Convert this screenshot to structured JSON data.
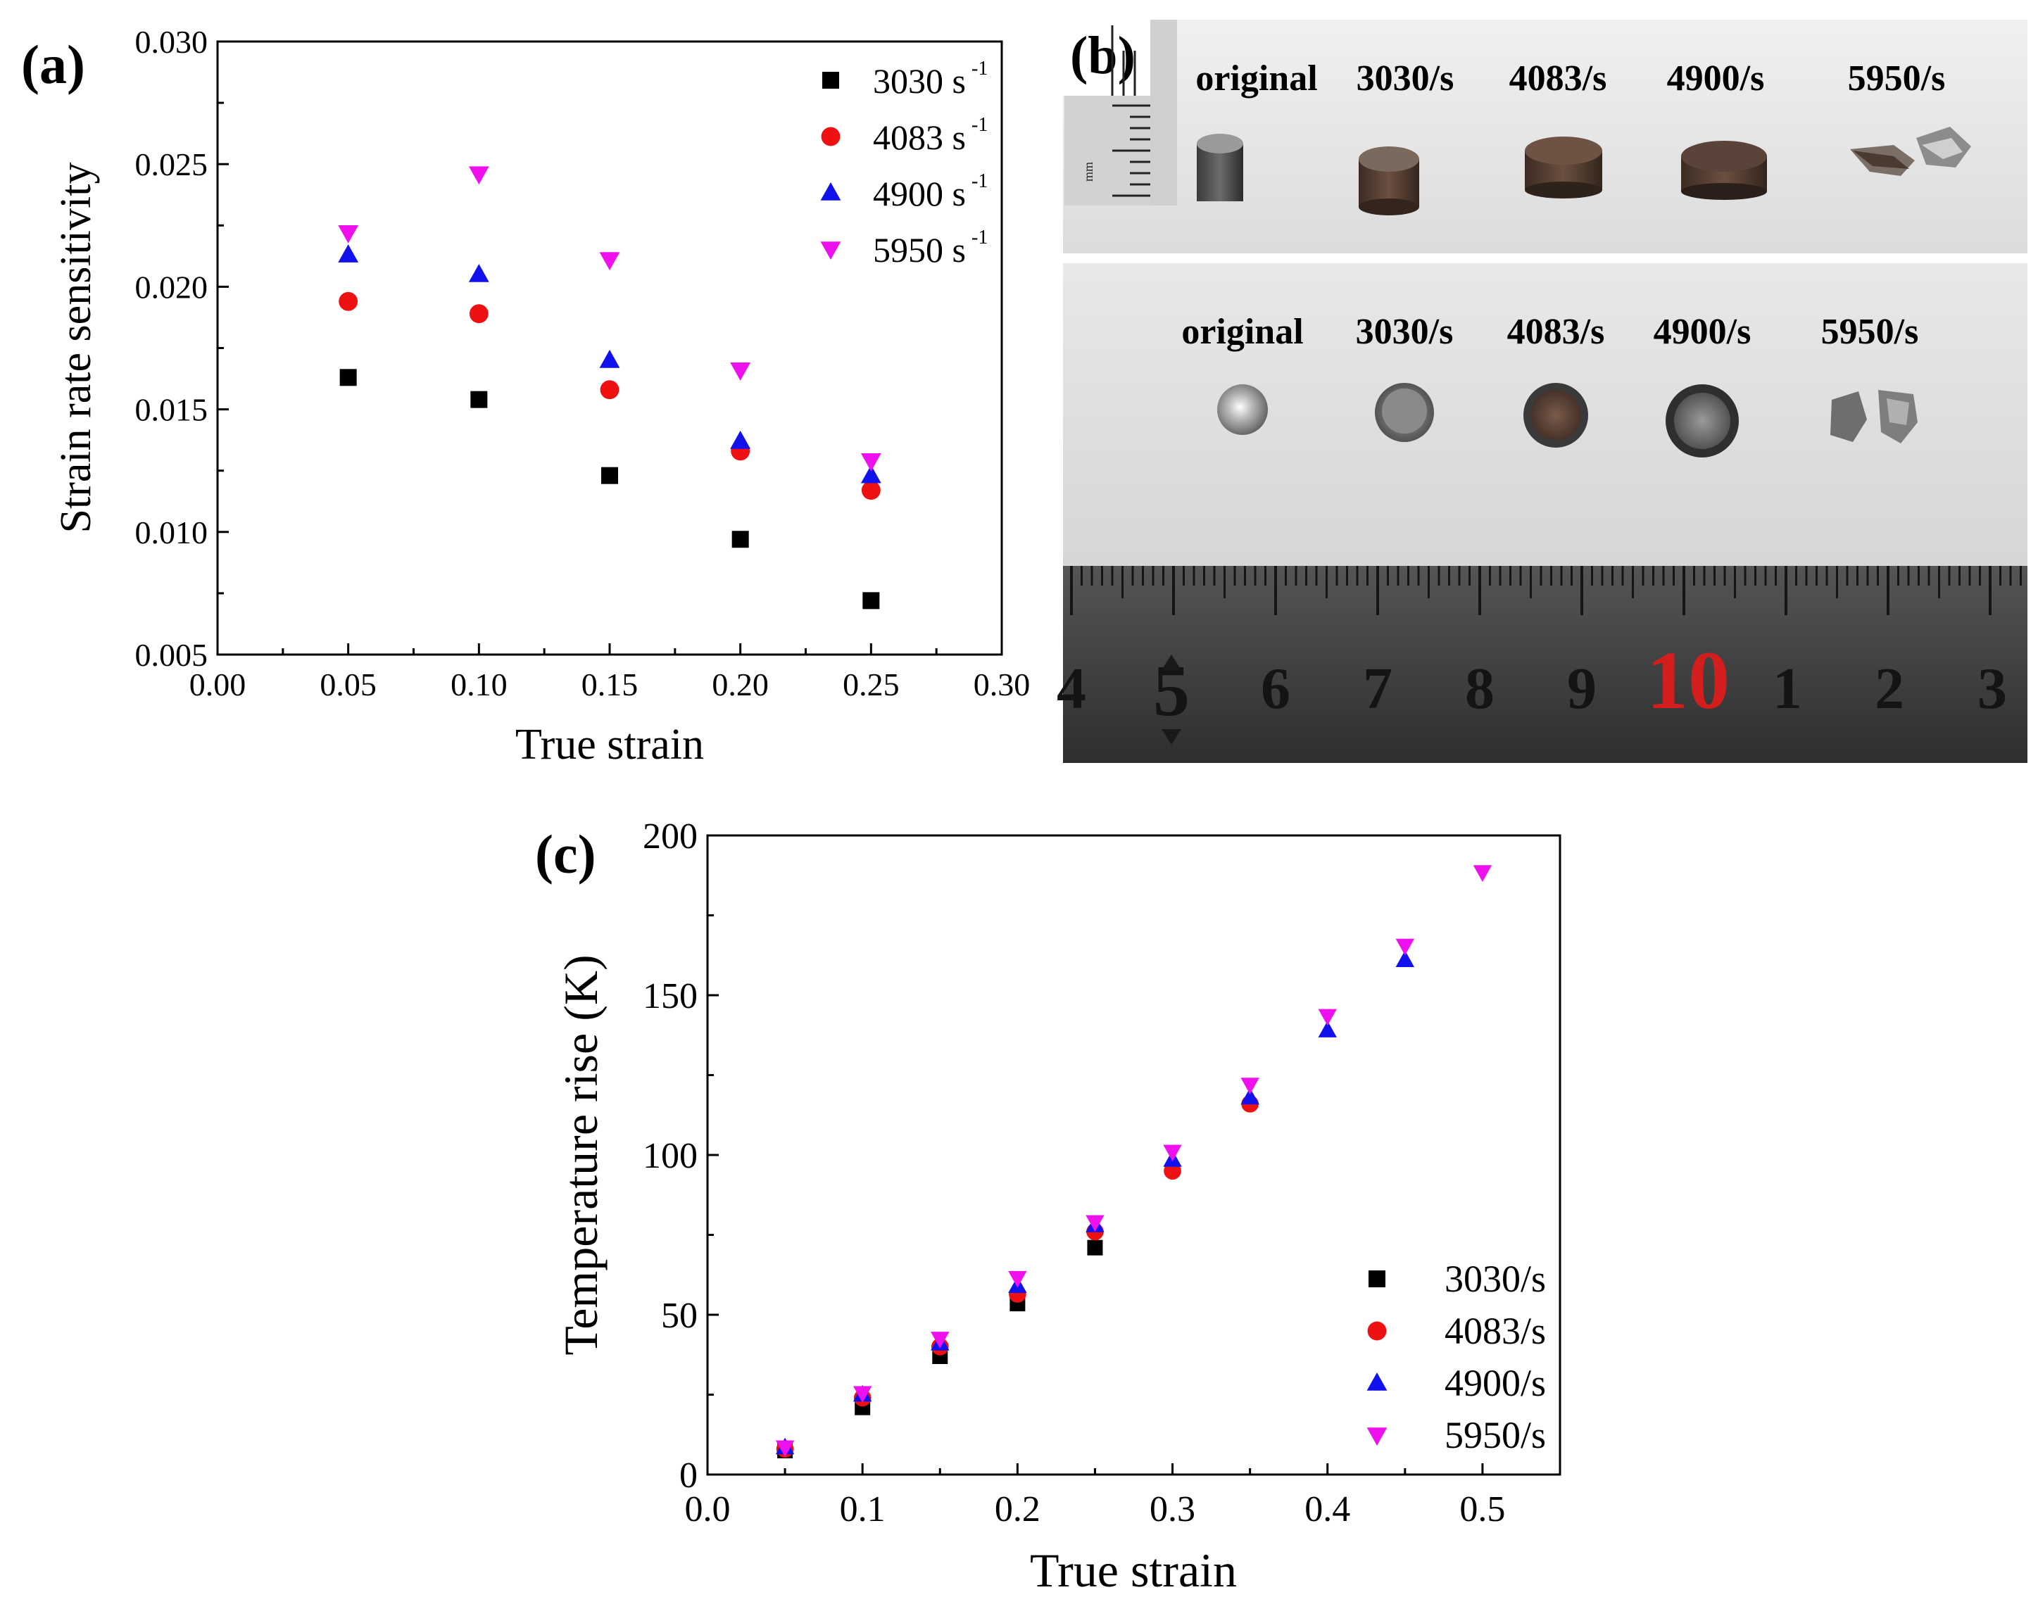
{
  "colors": {
    "black": "#000000",
    "red": "#ee1111",
    "blue": "#1111ee",
    "magenta": "#ee11ee",
    "photo_bg": "#e6e6e6",
    "ruler_dark": "#3d3d3d",
    "ruler_red": "#d41e1e"
  },
  "panel_a": {
    "label": "(a)",
    "chart_data": {
      "type": "scatter",
      "title": "",
      "xlabel": "True strain",
      "ylabel": "Strain rate sensitivity",
      "xlim": [
        0.0,
        0.3
      ],
      "ylim": [
        0.005,
        0.03
      ],
      "xticks": [
        "0.00",
        "0.05",
        "0.10",
        "0.15",
        "0.20",
        "0.25",
        "0.30"
      ],
      "yticks": [
        "0.005",
        "0.010",
        "0.015",
        "0.020",
        "0.025",
        "0.030"
      ],
      "legend_position": "top-right",
      "series": [
        {
          "name": "3030 s",
          "sup": "-1",
          "marker": "square",
          "color": "#000000",
          "x": [
            0.05,
            0.1,
            0.15,
            0.2,
            0.25
          ],
          "y": [
            0.0163,
            0.0154,
            0.0123,
            0.0097,
            0.0072
          ]
        },
        {
          "name": "4083 s",
          "sup": "-1",
          "marker": "circle",
          "color": "#ee1111",
          "x": [
            0.05,
            0.1,
            0.15,
            0.2,
            0.25
          ],
          "y": [
            0.0194,
            0.0189,
            0.0158,
            0.0133,
            0.0117
          ]
        },
        {
          "name": "4900 s",
          "sup": "-1",
          "marker": "triangle-up",
          "color": "#1111ee",
          "x": [
            0.05,
            0.1,
            0.15,
            0.2,
            0.25
          ],
          "y": [
            0.0213,
            0.0205,
            0.017,
            0.0137,
            0.0123
          ]
        },
        {
          "name": "5950 s",
          "sup": "-1",
          "marker": "triangle-down",
          "color": "#ee11ee",
          "x": [
            0.05,
            0.1,
            0.15,
            0.2,
            0.25
          ],
          "y": [
            0.0222,
            0.0246,
            0.0211,
            0.0166,
            0.0129
          ]
        }
      ]
    }
  },
  "panel_b": {
    "label": "(b)",
    "top_labels": [
      "original",
      "3030/s",
      "4083/s",
      "4900/s",
      "5950/s"
    ],
    "bottom_labels": [
      "original",
      "3030/s",
      "4083/s",
      "4900/s",
      "5950/s"
    ],
    "scale_unit": "mm",
    "ruler_numbers": [
      "4",
      "5",
      "6",
      "7",
      "8",
      "9",
      "10",
      "1",
      "2",
      "3"
    ]
  },
  "panel_c": {
    "label": "(c)",
    "chart_data": {
      "type": "scatter",
      "title": "",
      "xlabel": "True strain",
      "ylabel": "Temperature rise (K)",
      "xlim": [
        0.0,
        0.55
      ],
      "ylim": [
        0,
        200
      ],
      "xticks": [
        "0.0",
        "0.1",
        "0.2",
        "0.3",
        "0.4",
        "0.5"
      ],
      "yticks": [
        "0",
        "50",
        "100",
        "150",
        "200"
      ],
      "legend_position": "bottom-right",
      "series": [
        {
          "name": "3030/s",
          "marker": "square",
          "color": "#000000",
          "x": [
            0.05,
            0.1,
            0.15,
            0.2,
            0.25
          ],
          "y": [
            7.5,
            21,
            37,
            53.5,
            71
          ]
        },
        {
          "name": "4083/s",
          "marker": "circle",
          "color": "#ee1111",
          "x": [
            0.05,
            0.1,
            0.15,
            0.2,
            0.25,
            0.3,
            0.35
          ],
          "y": [
            8,
            24,
            40,
            56.5,
            76,
            95,
            116
          ]
        },
        {
          "name": "4900/s",
          "marker": "triangle-up",
          "color": "#1111ee",
          "x": [
            0.05,
            0.1,
            0.15,
            0.2,
            0.25,
            0.3,
            0.35,
            0.4,
            0.45
          ],
          "y": [
            8.5,
            25,
            41,
            59,
            78,
            98.5,
            118,
            139,
            161
          ]
        },
        {
          "name": "5950/s",
          "marker": "triangle-down",
          "color": "#ee11ee",
          "x": [
            0.05,
            0.1,
            0.15,
            0.2,
            0.25,
            0.3,
            0.35,
            0.4,
            0.45,
            0.5
          ],
          "y": [
            8.5,
            25.5,
            42.5,
            61.5,
            79,
            101,
            122,
            143.5,
            165.5,
            188.5
          ]
        }
      ]
    }
  }
}
